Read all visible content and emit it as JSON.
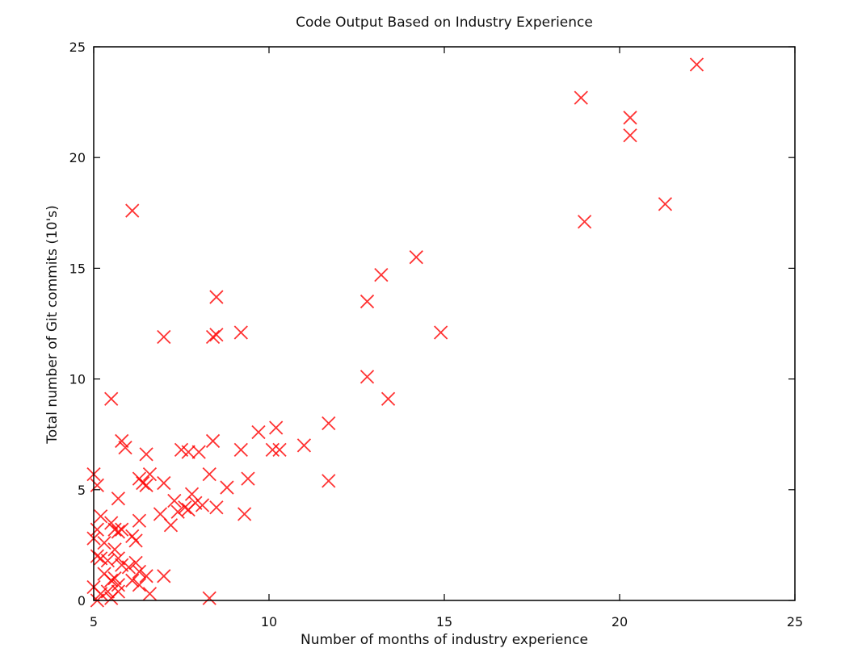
{
  "chart_data": {
    "type": "scatter",
    "title": "Code Output Based on Industry Experience",
    "xlabel": "Number of months of industry experience",
    "ylabel": "Total number of Git commits (10's)",
    "xlim": [
      5,
      25
    ],
    "ylim": [
      0,
      25
    ],
    "xticks": [
      5,
      10,
      15,
      20,
      25
    ],
    "yticks": [
      0,
      5,
      10,
      15,
      20,
      25
    ],
    "grid": false,
    "marker": "x",
    "marker_color": "#ff0000",
    "series": [
      {
        "points": [
          [
            22.2,
            24.2
          ],
          [
            18.9,
            22.7
          ],
          [
            20.3,
            21.8
          ],
          [
            20.3,
            21.0
          ],
          [
            21.3,
            17.9
          ],
          [
            19.0,
            17.1
          ],
          [
            6.1,
            17.6
          ],
          [
            14.2,
            15.5
          ],
          [
            13.2,
            14.7
          ],
          [
            12.8,
            13.5
          ],
          [
            8.5,
            13.7
          ],
          [
            7.0,
            11.9
          ],
          [
            8.4,
            11.9
          ],
          [
            8.5,
            12.0
          ],
          [
            9.2,
            12.1
          ],
          [
            14.9,
            12.1
          ],
          [
            12.8,
            10.1
          ],
          [
            13.4,
            9.1
          ],
          [
            5.5,
            9.1
          ],
          [
            11.7,
            8.0
          ],
          [
            9.7,
            7.6
          ],
          [
            10.2,
            7.8
          ],
          [
            11.0,
            7.0
          ],
          [
            10.1,
            6.8
          ],
          [
            10.3,
            6.8
          ],
          [
            9.2,
            6.8
          ],
          [
            8.4,
            7.2
          ],
          [
            5.8,
            7.2
          ],
          [
            5.9,
            6.9
          ],
          [
            6.5,
            6.6
          ],
          [
            7.5,
            6.8
          ],
          [
            7.7,
            6.7
          ],
          [
            8.0,
            6.7
          ],
          [
            8.3,
            5.7
          ],
          [
            9.4,
            5.5
          ],
          [
            11.7,
            5.4
          ],
          [
            6.3,
            5.5
          ],
          [
            6.4,
            5.3
          ],
          [
            6.5,
            5.2
          ],
          [
            6.6,
            5.7
          ],
          [
            7.0,
            5.3
          ],
          [
            8.8,
            5.1
          ],
          [
            5.0,
            5.7
          ],
          [
            5.1,
            5.2
          ],
          [
            5.7,
            4.6
          ],
          [
            7.3,
            4.5
          ],
          [
            7.8,
            4.8
          ],
          [
            8.1,
            4.3
          ],
          [
            8.5,
            4.2
          ],
          [
            9.3,
            3.9
          ],
          [
            7.4,
            4.0
          ],
          [
            7.6,
            4.2
          ],
          [
            7.7,
            4.1
          ],
          [
            7.9,
            4.4
          ],
          [
            6.9,
            3.9
          ],
          [
            7.2,
            3.4
          ],
          [
            6.3,
            3.6
          ],
          [
            5.2,
            3.8
          ],
          [
            5.5,
            3.5
          ],
          [
            5.6,
            3.2
          ],
          [
            5.7,
            3.1
          ],
          [
            5.8,
            3.2
          ],
          [
            6.1,
            2.9
          ],
          [
            6.2,
            2.7
          ],
          [
            5.1,
            3.2
          ],
          [
            5.0,
            2.8
          ],
          [
            5.3,
            2.6
          ],
          [
            5.6,
            2.3
          ],
          [
            5.1,
            2.0
          ],
          [
            5.2,
            1.9
          ],
          [
            5.4,
            1.8
          ],
          [
            5.7,
            1.9
          ],
          [
            5.8,
            1.6
          ],
          [
            6.0,
            1.5
          ],
          [
            6.3,
            1.3
          ],
          [
            6.2,
            1.7
          ],
          [
            5.3,
            1.2
          ],
          [
            5.5,
            0.9
          ],
          [
            5.6,
            1.0
          ],
          [
            5.7,
            0.7
          ],
          [
            6.1,
            0.9
          ],
          [
            6.3,
            0.7
          ],
          [
            6.5,
            1.1
          ],
          [
            7.0,
            1.1
          ],
          [
            5.0,
            0.6
          ],
          [
            5.2,
            0.3
          ],
          [
            5.4,
            0.4
          ],
          [
            5.5,
            0.1
          ],
          [
            5.7,
            0.4
          ],
          [
            6.6,
            0.3
          ],
          [
            8.3,
            0.1
          ],
          [
            5.1,
            0.0
          ]
        ]
      }
    ]
  }
}
